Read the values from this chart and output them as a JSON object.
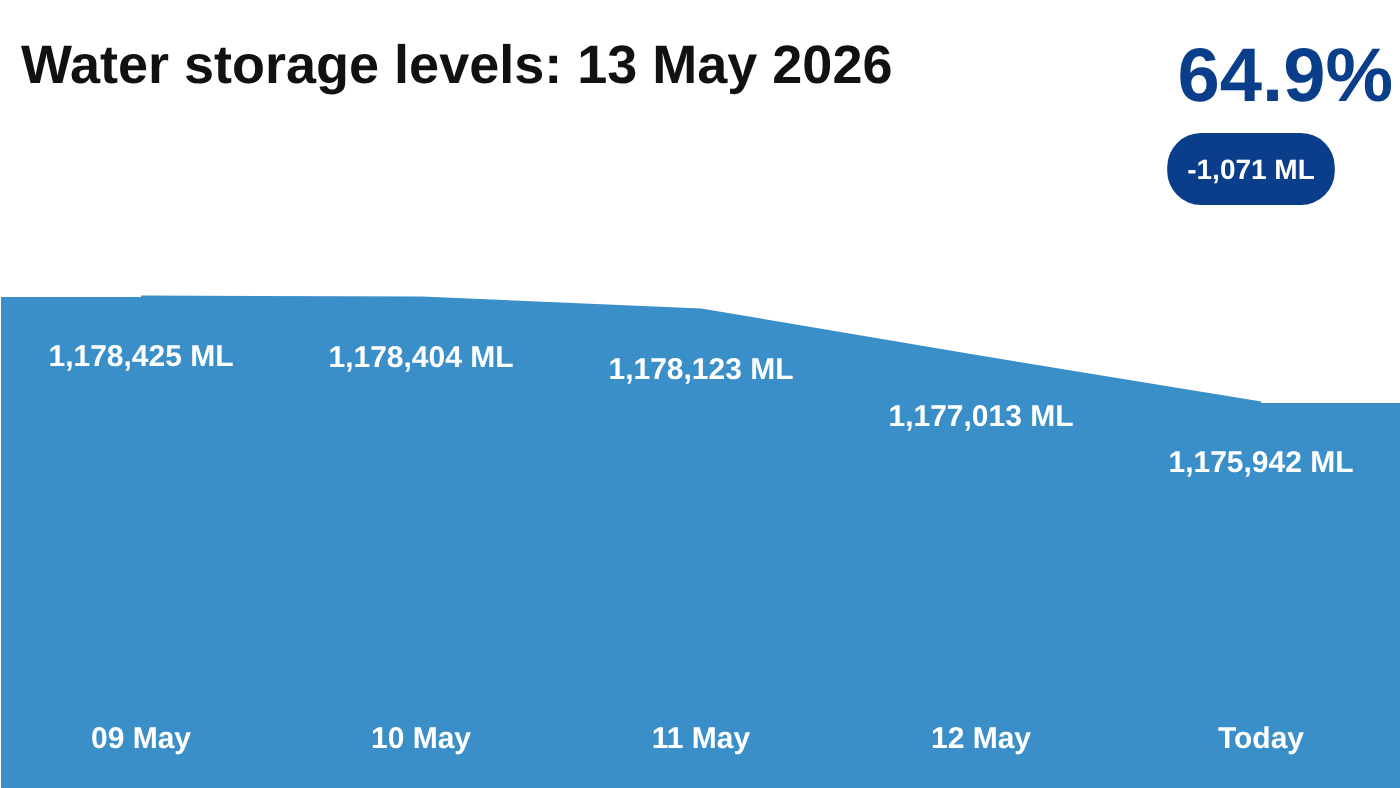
{
  "chart_data": {
    "type": "area",
    "title": "Water storage levels: 13 May 2026",
    "categories": [
      "09 May",
      "10 May",
      "11 May",
      "12 May",
      "Today"
    ],
    "values": [
      1178425,
      1178404,
      1178123,
      1177013,
      1175942
    ],
    "value_labels": [
      "1,178,425 ML",
      "1,178,404 ML",
      "1,178,123 ML",
      "1,177,013 ML",
      "1,175,942 ML"
    ],
    "color": "#3a8fc9",
    "ylim": [
      1166900,
      1185360
    ],
    "annotations": [
      "64.9%",
      "-1,071 ML"
    ]
  }
}
